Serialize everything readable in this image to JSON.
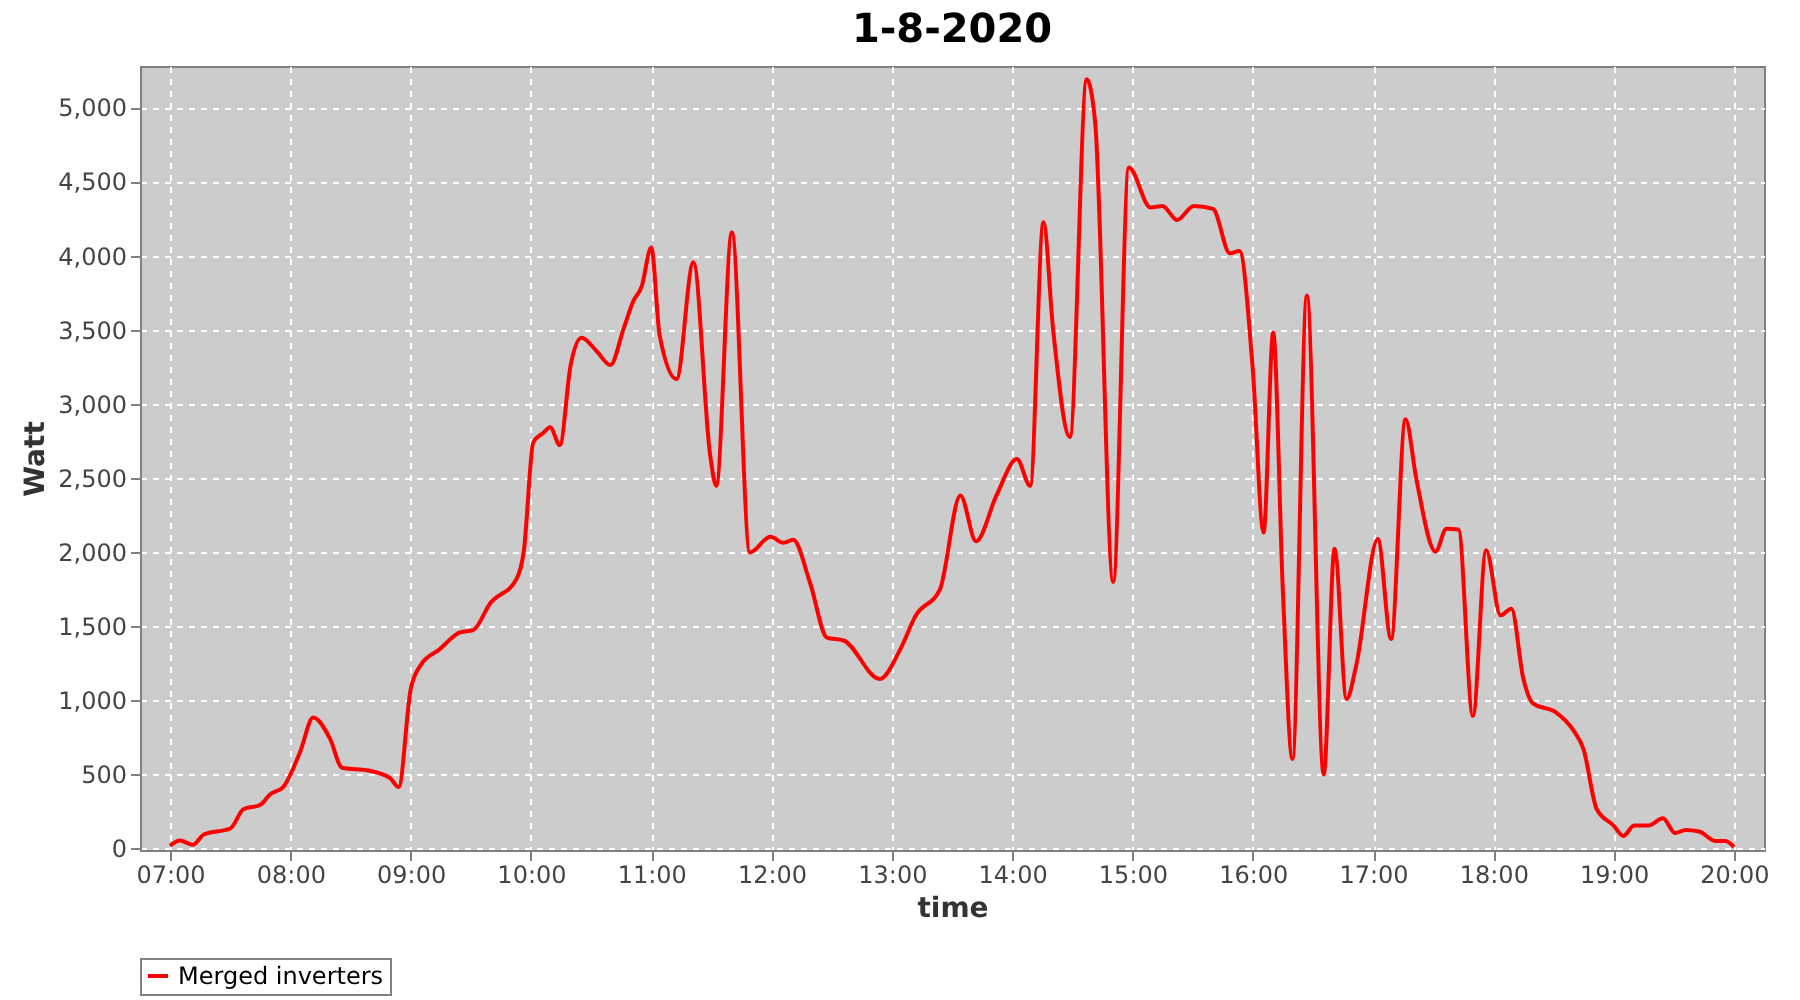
{
  "chart_data": {
    "type": "line",
    "title": "1-8-2020",
    "xlabel": "time",
    "ylabel": "Watt",
    "x": [
      7.0,
      7.08,
      7.19,
      7.28,
      7.5,
      7.61,
      7.75,
      7.83,
      7.94,
      8.08,
      8.19,
      8.33,
      8.43,
      8.66,
      8.83,
      8.9,
      9.0,
      9.08,
      9.24,
      9.41,
      9.52,
      9.66,
      9.88,
      9.94,
      10.02,
      10.1,
      10.16,
      10.24,
      10.33,
      10.42,
      10.55,
      10.66,
      10.77,
      10.85,
      10.92,
      11.0,
      11.07,
      11.21,
      11.35,
      11.49,
      11.54,
      11.67,
      11.82,
      11.99,
      12.1,
      12.18,
      12.32,
      12.46,
      12.6,
      12.9,
      13.07,
      13.2,
      13.4,
      13.57,
      13.7,
      13.87,
      14.04,
      14.15,
      14.26,
      14.34,
      14.48,
      14.62,
      14.69,
      14.84,
      14.97,
      15.15,
      15.25,
      15.37,
      15.51,
      15.67,
      15.81,
      15.89,
      16.0,
      16.09,
      16.17,
      16.25,
      16.33,
      16.45,
      16.59,
      16.68,
      16.78,
      16.86,
      17.04,
      17.15,
      17.27,
      17.36,
      17.52,
      17.61,
      17.71,
      17.83,
      17.94,
      18.06,
      18.15,
      18.25,
      18.33,
      18.52,
      18.66,
      18.75,
      18.86,
      19.0,
      19.08,
      19.17,
      19.29,
      19.41,
      19.51,
      19.6,
      19.71,
      19.85,
      19.93,
      20.0
    ],
    "series": [
      {
        "name": "Merged inverters",
        "color": "#ff0000",
        "values": [
          13,
          50,
          20,
          90,
          130,
          260,
          290,
          360,
          410,
          645,
          880,
          735,
          540,
          520,
          470,
          410,
          1070,
          1230,
          1340,
          1455,
          1470,
          1650,
          1815,
          2000,
          2740,
          2800,
          2840,
          2720,
          3260,
          3445,
          3350,
          3260,
          3505,
          3690,
          3790,
          4055,
          3460,
          3165,
          3955,
          2650,
          2445,
          4155,
          1995,
          2100,
          2060,
          2080,
          1790,
          1420,
          1400,
          1140,
          1340,
          1570,
          1745,
          2380,
          2070,
          2380,
          2625,
          2445,
          4225,
          3505,
          2775,
          5190,
          4900,
          1795,
          4595,
          4325,
          4335,
          4240,
          4335,
          4315,
          4015,
          4030,
          3235,
          2130,
          3480,
          1745,
          600,
          3730,
          495,
          2020,
          1005,
          1230,
          2085,
          1410,
          2895,
          2490,
          2000,
          2155,
          2150,
          890,
          2010,
          1570,
          1615,
          1140,
          975,
          915,
          800,
          665,
          260,
          150,
          80,
          150,
          150,
          200,
          100,
          120,
          110,
          45,
          45,
          5
        ]
      }
    ],
    "xlim": [
      6.75,
      20.25
    ],
    "xticks": [
      {
        "value": 7,
        "label": "07:00"
      },
      {
        "value": 8,
        "label": "08:00"
      },
      {
        "value": 9,
        "label": "09:00"
      },
      {
        "value": 10,
        "label": "10:00"
      },
      {
        "value": 11,
        "label": "11:00"
      },
      {
        "value": 12,
        "label": "12:00"
      },
      {
        "value": 13,
        "label": "13:00"
      },
      {
        "value": 14,
        "label": "14:00"
      },
      {
        "value": 15,
        "label": "15:00"
      },
      {
        "value": 16,
        "label": "16:00"
      },
      {
        "value": 17,
        "label": "17:00"
      },
      {
        "value": 18,
        "label": "18:00"
      },
      {
        "value": 19,
        "label": "19:00"
      },
      {
        "value": 20,
        "label": "20:00"
      }
    ],
    "ylim": [
      -15,
      5280
    ],
    "yticks": [
      0,
      500,
      {
        "value": 1000,
        "label": "1,000"
      },
      {
        "value": 1500,
        "label": "1,500"
      },
      {
        "value": 2000,
        "label": "2,000"
      },
      {
        "value": 2500,
        "label": "2,500"
      },
      {
        "value": 3000,
        "label": "3,000"
      },
      {
        "value": 3500,
        "label": "3,500"
      },
      {
        "value": 4000,
        "label": "4,000"
      },
      {
        "value": 4500,
        "label": "4,500"
      },
      {
        "value": 5000,
        "label": "5,000"
      }
    ],
    "grid": true,
    "legend": "bottom",
    "marker": "none",
    "line_style": "solid"
  }
}
